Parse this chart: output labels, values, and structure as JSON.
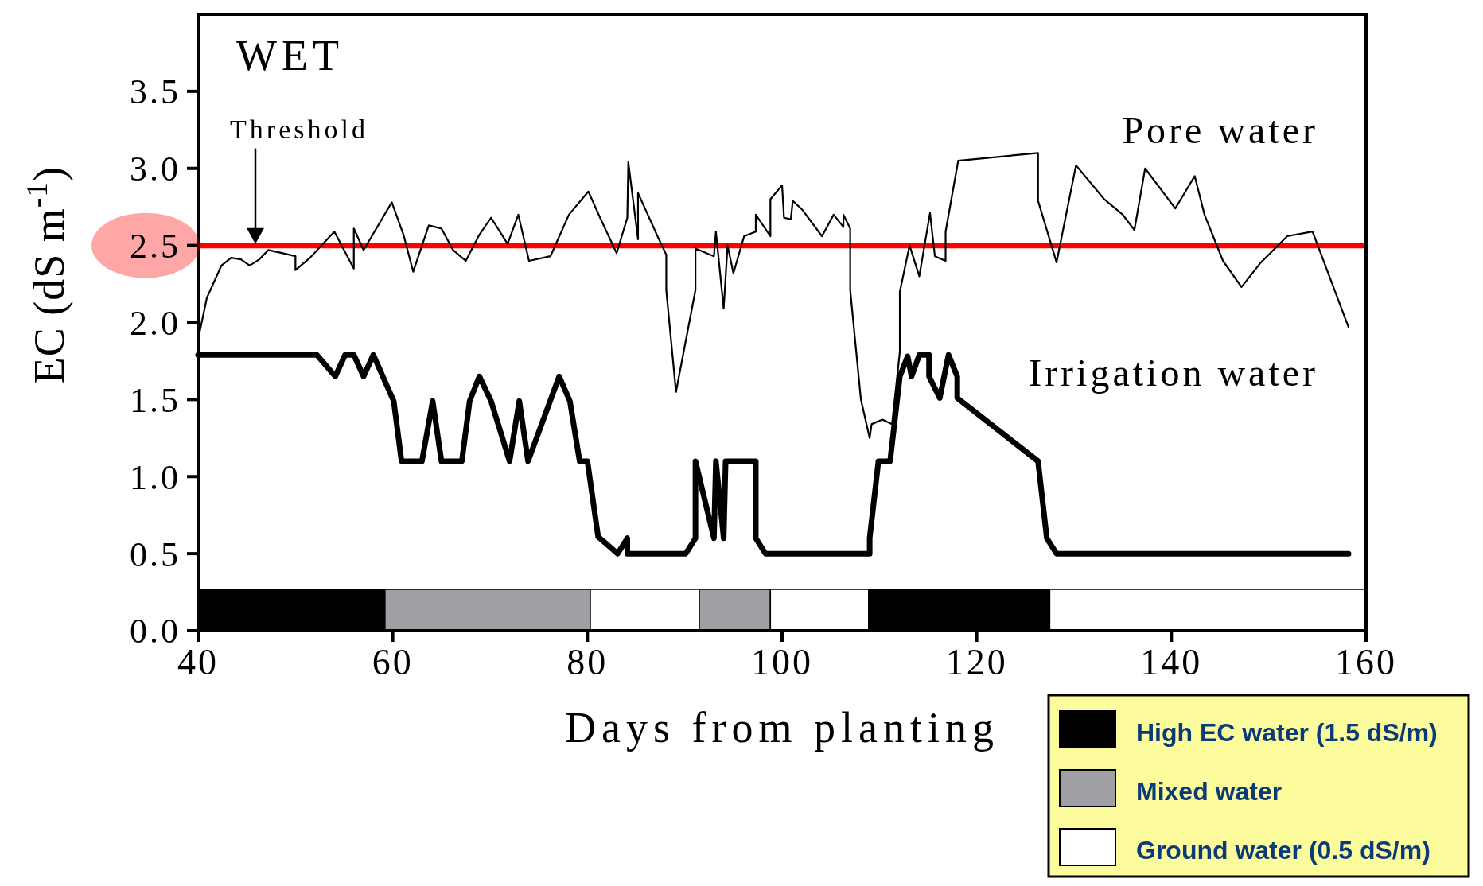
{
  "chart_data": {
    "type": "line",
    "xlabel": "Days from planting",
    "ylabel": "EC (dS m$^{-1}$)",
    "annotations": [
      "WET",
      "Threshold"
    ],
    "xlim": [
      40,
      160
    ],
    "xticks": [
      40,
      60,
      80,
      100,
      120,
      140,
      160
    ],
    "ylim": [
      0,
      4
    ],
    "yticks": [
      {
        "value": 0,
        "label": "0.0"
      },
      {
        "value": 0.5,
        "label": "0.5"
      },
      {
        "value": 1,
        "label": "1.0"
      },
      {
        "value": 1.5,
        "label": "1.5"
      },
      {
        "value": 2,
        "label": "2.0"
      },
      {
        "value": 2.5,
        "label": "2.5"
      },
      {
        "value": 3,
        "label": "3.0"
      },
      {
        "value": 3.5,
        "label": "3.5"
      }
    ],
    "grid": false,
    "legend": "bottom right",
    "marker": "none",
    "line_style": "solid",
    "ref_lines": [
      {
        "axis": "y",
        "value": 2.5,
        "color": "#ff0000"
      }
    ],
    "bands": [
      {
        "axis": "x",
        "from": 40,
        "to": 59.2,
        "label": "High EC water (1.5 dS/m)",
        "color": "#000000"
      },
      {
        "axis": "x",
        "from": 59.2,
        "to": 80.3,
        "label": "Mixed water",
        "color": "#a0a0a4"
      },
      {
        "axis": "x",
        "from": 80.3,
        "to": 91.5,
        "label": "Ground water (0.5 dS/m)",
        "color": "#ffffff"
      },
      {
        "axis": "x",
        "from": 91.5,
        "to": 98.8,
        "color": "#a0a0a4"
      },
      {
        "axis": "x",
        "from": 98.8,
        "to": 108.9,
        "color": "#ffffff"
      },
      {
        "axis": "x",
        "from": 108.9,
        "to": 127.5,
        "color": "#000000"
      },
      {
        "axis": "x",
        "from": 127.5,
        "to": 160,
        "color": "#ffffff"
      }
    ],
    "series": [
      {
        "name": "Pore water",
        "color": "#000000",
        "x": [
          40,
          40.9,
          42.4,
          43.4,
          44.4,
          45.3,
          46.3,
          47.2,
          48.7,
          50,
          50,
          51.5,
          54,
          56,
          56,
          57,
          59.9,
          61.1,
          62.1,
          63.7,
          65,
          66.2,
          67.5,
          68.9,
          70.1,
          71.8,
          72.9,
          74,
          76.2,
          78.1,
          80.1,
          81.3,
          83,
          84.1,
          84.2,
          85.2,
          85.2,
          87.2,
          88.1,
          88.1,
          89.1,
          91.1,
          91.1,
          93,
          93.2,
          94,
          94.4,
          95,
          96.1,
          97.3,
          97.3,
          98.8,
          98.8,
          100,
          100.2,
          100.9,
          101.1,
          102.1,
          104.1,
          105.3,
          106.3,
          106.3,
          107,
          107,
          108.1,
          109,
          109.2,
          110.3,
          111.3,
          112.1,
          112.1,
          113.1,
          114.1,
          115.2,
          115.7,
          116.8,
          116.8,
          118.1,
          126.3,
          126.3,
          128.2,
          130.2,
          133.1,
          135,
          136.2,
          137.3,
          140.4,
          142.4,
          143.4,
          145.3,
          147.2,
          149.2,
          151.9,
          154.5,
          158.2
        ],
        "values": [
          1.89,
          2.16,
          2.37,
          2.42,
          2.41,
          2.37,
          2.41,
          2.47,
          2.45,
          2.43,
          2.34,
          2.42,
          2.59,
          2.35,
          2.61,
          2.47,
          2.78,
          2.57,
          2.33,
          2.63,
          2.61,
          2.47,
          2.4,
          2.57,
          2.68,
          2.51,
          2.7,
          2.4,
          2.43,
          2.7,
          2.85,
          2.68,
          2.45,
          2.68,
          3.04,
          2.54,
          2.84,
          2.56,
          2.44,
          2.21,
          1.55,
          2.21,
          2.48,
          2.43,
          2.59,
          2.09,
          2.5,
          2.32,
          2.56,
          2.59,
          2.7,
          2.56,
          2.8,
          2.89,
          2.68,
          2.67,
          2.79,
          2.73,
          2.56,
          2.7,
          2.62,
          2.7,
          2.61,
          2.21,
          1.5,
          1.25,
          1.34,
          1.37,
          1.34,
          1.81,
          2.2,
          2.5,
          2.3,
          2.71,
          2.43,
          2.4,
          2.59,
          3.05,
          3.1,
          2.79,
          2.39,
          3.02,
          2.8,
          2.7,
          2.6,
          3,
          2.74,
          2.95,
          2.7,
          2.4,
          2.23,
          2.39,
          2.56,
          2.59,
          1.97
        ]
      },
      {
        "name": "Irrigation water",
        "color": "#000000",
        "x": [
          40,
          52.2,
          54.1,
          55.1,
          56,
          57,
          58,
          60.1,
          60.9,
          63,
          64.1,
          65,
          67.1,
          67.9,
          68.9,
          70.1,
          72,
          73,
          73.9,
          77.1,
          78.2,
          79.2,
          80,
          81.1,
          83.1,
          84.1,
          84.1,
          90.1,
          91.1,
          91.1,
          93,
          93.2,
          94,
          94.2,
          97.3,
          97.3,
          98.3,
          109,
          109,
          109.9,
          111.1,
          112.1,
          112.9,
          113.3,
          114.1,
          115.1,
          115.1,
          116.2,
          117.1,
          118,
          118,
          126.3,
          127.2,
          128.2,
          158.2
        ],
        "values": [
          1.79,
          1.79,
          1.65,
          1.79,
          1.79,
          1.65,
          1.79,
          1.49,
          1.1,
          1.1,
          1.49,
          1.1,
          1.1,
          1.49,
          1.65,
          1.49,
          1.1,
          1.49,
          1.1,
          1.65,
          1.49,
          1.1,
          1.1,
          0.61,
          0.5,
          0.6,
          0.5,
          0.5,
          0.6,
          1.1,
          0.6,
          1.1,
          0.6,
          1.1,
          1.1,
          0.6,
          0.5,
          0.5,
          0.6,
          1.1,
          1.1,
          1.65,
          1.78,
          1.65,
          1.79,
          1.79,
          1.65,
          1.51,
          1.79,
          1.65,
          1.51,
          1.1,
          0.6,
          0.5,
          0.5
        ]
      }
    ]
  }
}
